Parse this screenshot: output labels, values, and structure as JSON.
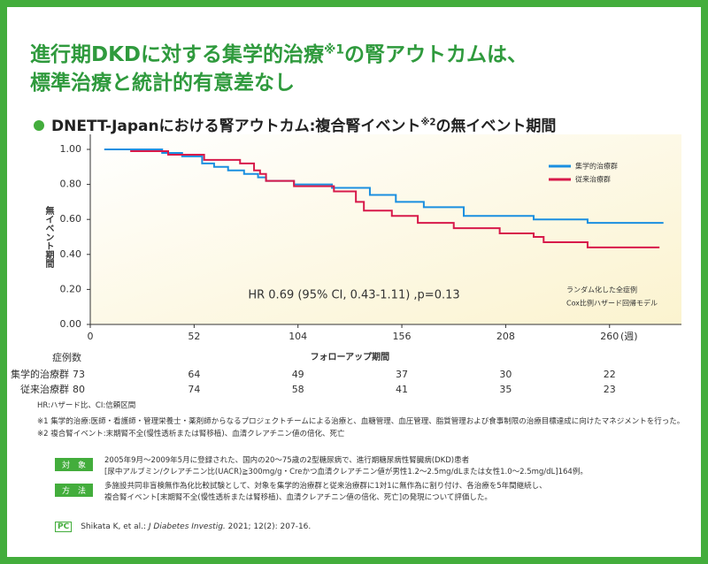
{
  "header": {
    "title": {
      "line1a": "進行期DKDに対する集学的治療",
      "line1sup": "※1",
      "line1b": "の腎アウトカムは、",
      "line2": "標準治療と統計的有意差なし"
    },
    "subtitle": {
      "a": "DNETT-Japanにおける腎アウトカム:複合腎イベント",
      "sup": "※2",
      "b": "の無イベント期間"
    }
  },
  "chart_data": {
    "type": "step",
    "ylabel": "無イベント期間",
    "xlabel": "フォローアップ期間",
    "x_unit": "(週)",
    "xlim": [
      0,
      296
    ],
    "ylim": [
      0,
      1
    ],
    "xticks": [
      0,
      52,
      104,
      156,
      208,
      260
    ],
    "yticks": [
      {
        "value": 0,
        "label": "0.00"
      },
      {
        "value": 0.2,
        "label": "0.20"
      },
      {
        "value": 0.4,
        "label": "0.40"
      },
      {
        "value": 0.6,
        "label": "0.60"
      },
      {
        "value": 0.8,
        "label": "0.80"
      },
      {
        "value": 1,
        "label": "1.00"
      }
    ],
    "annotation": "HR 0.69 (95% CI, 0.43-1.11) ,p=0.13",
    "model_note": [
      "ランダム化した全症例",
      "Cox比例ハザード回帰モデル"
    ],
    "series": [
      {
        "name": "集学的治療群",
        "color": "#1a8fe0",
        "x": [
          7,
          36,
          36,
          46,
          46,
          56,
          56,
          62,
          62,
          69,
          69,
          77,
          77,
          84,
          84,
          88,
          88,
          102,
          102,
          121,
          121,
          140,
          140,
          153,
          153,
          167,
          167,
          187,
          187,
          222,
          222,
          249,
          249,
          287
        ],
        "values": [
          1,
          1,
          0.98,
          0.98,
          0.96,
          0.96,
          0.92,
          0.92,
          0.9,
          0.9,
          0.88,
          0.88,
          0.86,
          0.86,
          0.84,
          0.84,
          0.82,
          0.82,
          0.8,
          0.8,
          0.78,
          0.78,
          0.74,
          0.74,
          0.7,
          0.7,
          0.67,
          0.67,
          0.62,
          0.62,
          0.6,
          0.6,
          0.58,
          0.58
        ]
      },
      {
        "name": "従来治療群",
        "color": "#d7194a",
        "x": [
          20,
          39,
          39,
          57,
          57,
          75,
          75,
          82,
          82,
          85,
          85,
          88,
          88,
          102,
          102,
          122,
          122,
          133,
          133,
          137,
          137,
          151,
          151,
          164,
          164,
          182,
          182,
          205,
          205,
          222,
          222,
          227,
          227,
          249,
          249,
          285
        ],
        "values": [
          0.99,
          0.99,
          0.97,
          0.97,
          0.94,
          0.94,
          0.92,
          0.92,
          0.88,
          0.88,
          0.86,
          0.86,
          0.82,
          0.82,
          0.79,
          0.79,
          0.76,
          0.76,
          0.7,
          0.7,
          0.65,
          0.65,
          0.62,
          0.62,
          0.58,
          0.58,
          0.55,
          0.55,
          0.52,
          0.52,
          0.5,
          0.5,
          0.47,
          0.47,
          0.44,
          0.44
        ]
      }
    ]
  },
  "risk_table": {
    "header": "症例数",
    "rows": [
      {
        "label": "集学的治療群",
        "values": [
          73,
          64,
          49,
          37,
          30,
          22
        ]
      },
      {
        "label": "従来治療群",
        "values": [
          80,
          74,
          58,
          41,
          35,
          23
        ]
      }
    ]
  },
  "footnotes": [
    "HR:ハザード比、CI:信頼区間",
    "※1 集学的治療:医師・看護師・管理栄養士・薬剤師からなるプロジェクトチームによる治療と、血糖管理、血圧管理、脂質管理および食事制限の治療目標達成に向けたマネジメントを行った。",
    "※2 複合腎イベント:末期腎不全(慢性透析または腎移植)、血清クレアチニン値の倍化、死亡"
  ],
  "details": [
    {
      "label": "対　象",
      "lines": [
        "2005年9月～2009年5月に登録された、国内の20～75歳の2型糖尿病で、進行期糖尿病性腎臓病(DKD)患者",
        "[尿中アルブミン/クレアチニン比(UACR)≧300mg/g・Creかつ血清クレアチニン値が男性1.2～2.5mg/dLまたは女性1.0～2.5mg/dL]164例。"
      ]
    },
    {
      "label": "方　法",
      "lines": [
        "多施設共同非盲検無作為化比較試験として、対象を集学的治療群と従来治療群に1対1に無作為に割り付け、各治療を5年間継続し、",
        "複合腎イベント[末期腎不全(慢性透析または腎移植)、血清クレアチニン値の倍化、死亡]の発現について評価した。"
      ]
    }
  ],
  "citation": {
    "logo": "PC",
    "a": "Shikata K, et al.: ",
    "journal": "J Diabetes Investig.",
    "b": " 2021; 12(2): 207-16."
  }
}
